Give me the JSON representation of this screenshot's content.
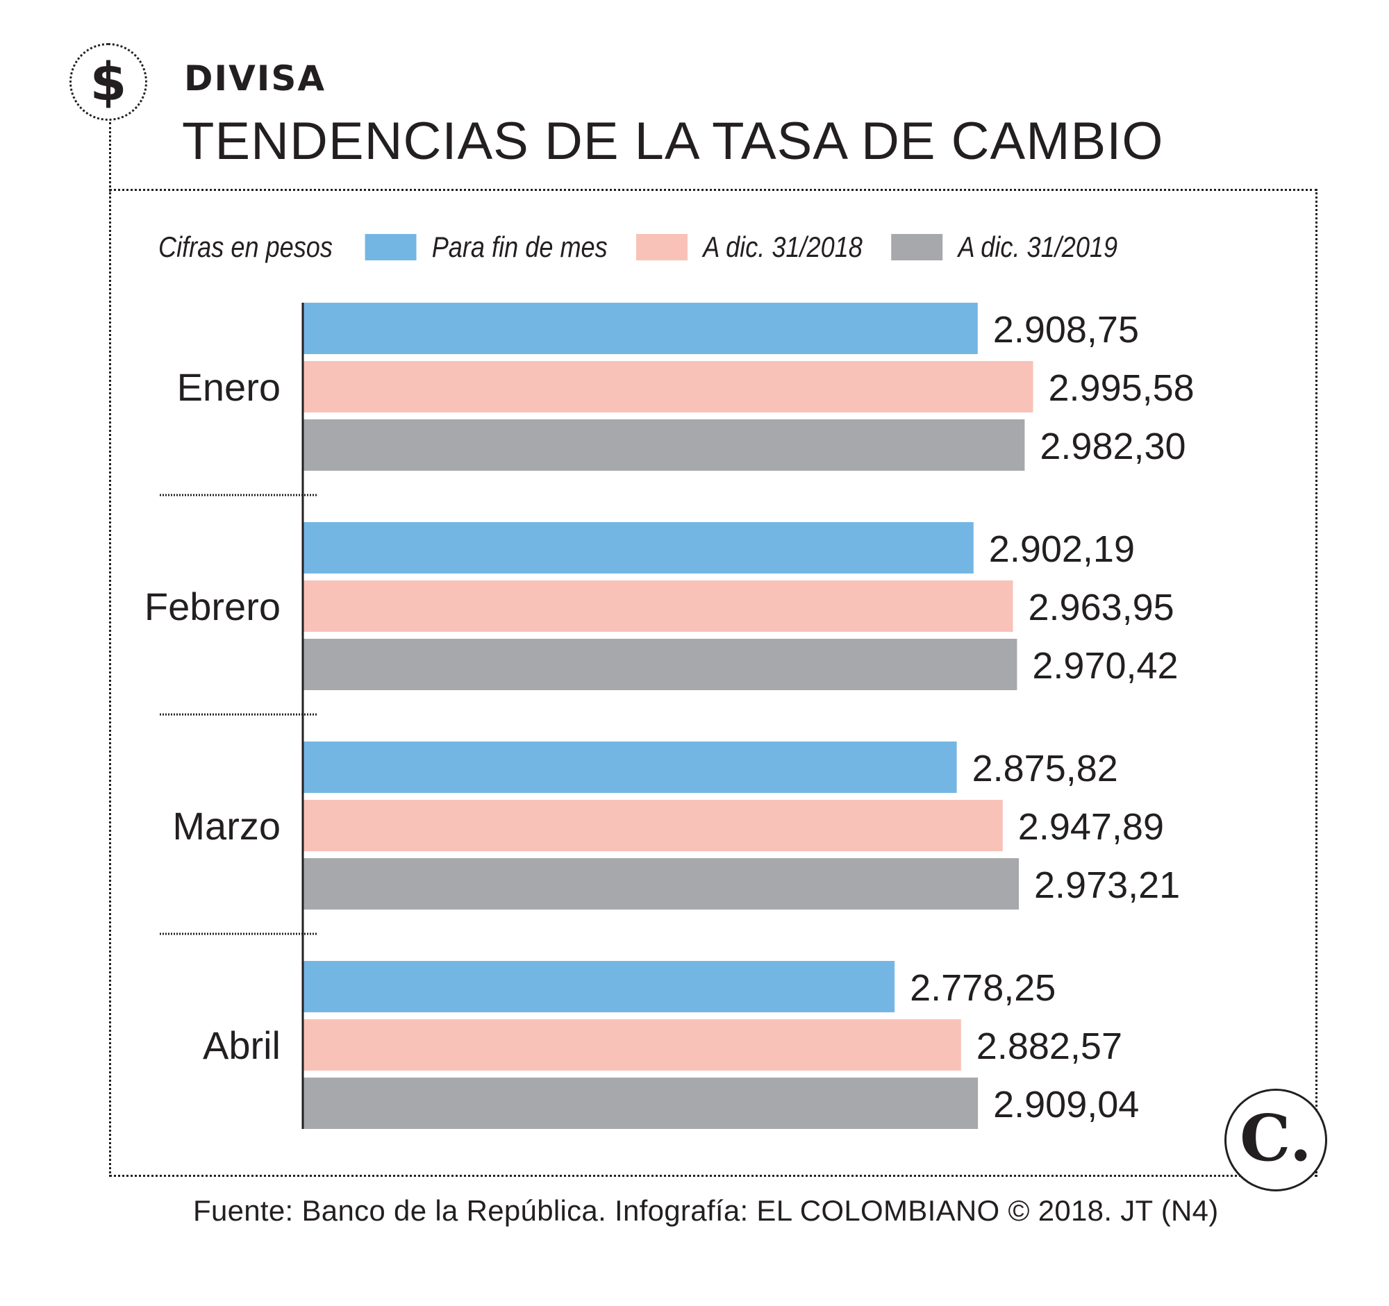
{
  "header": {
    "icon": "dollar-sign-icon",
    "icon_glyph": "$",
    "kicker": "DIVISA",
    "title": "TENDENCIAS DE LA TASA DE CAMBIO"
  },
  "legend": {
    "unit_label": "Cifras en pesos",
    "items": [
      "Para fin de mes",
      "A dic. 31/2018",
      "A dic. 31/2019"
    ]
  },
  "chart_data": {
    "type": "bar",
    "orientation": "horizontal",
    "categories": [
      "Enero",
      "Febrero",
      "Marzo",
      "Abril"
    ],
    "series": [
      {
        "name": "Para fin de mes",
        "color": "#74b6e3",
        "values": [
          2908.75,
          2902.19,
          2875.82,
          2778.25
        ],
        "labels": [
          "2.908,75",
          "2.902,19",
          "2.875,82",
          "2.778,25"
        ]
      },
      {
        "name": "A dic. 31/2018",
        "color": "#f8c2b8",
        "values": [
          2995.58,
          2963.95,
          2947.89,
          2882.57
        ],
        "labels": [
          "2.995,58",
          "2.963,95",
          "2.947,89",
          "2.882,57"
        ]
      },
      {
        "name": "A dic. 31/2019",
        "color": "#a6a8ab",
        "values": [
          2982.3,
          2970.42,
          2973.21,
          2909.04
        ],
        "labels": [
          "2.982,30",
          "2.970,42",
          "2.973,21",
          "2.909,04"
        ]
      }
    ],
    "xlim": [
      1850,
      3000
    ],
    "grid": false,
    "legend_position": "top"
  },
  "logo": {
    "glyph": "C.",
    "icon": "el-colombiano-logo-icon"
  },
  "footer": {
    "source": "Fuente: Banco de la República. Infografía: EL COLOMBIANO © 2018. JT (N4)"
  }
}
